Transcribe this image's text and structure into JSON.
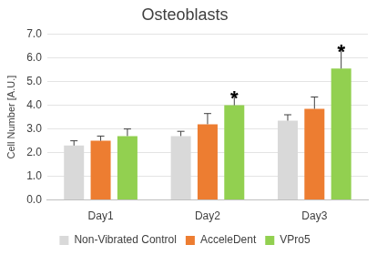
{
  "chart_data": {
    "type": "bar",
    "title": "Osteoblasts",
    "y_label": "Cell Number [A.U.]",
    "categories": [
      "Day1",
      "Day2",
      "Day3"
    ],
    "series": [
      {
        "name": "Non-Vibrated Control",
        "color": "#d9d9d9",
        "values": [
          2.3,
          2.7,
          3.35
        ],
        "errors": [
          0.2,
          0.2,
          0.25
        ]
      },
      {
        "name": "AcceleDent",
        "color": "#ed7d31",
        "values": [
          2.5,
          3.2,
          3.85
        ],
        "errors": [
          0.2,
          0.45,
          0.5
        ]
      },
      {
        "name": "VPro5",
        "color": "#92d050",
        "values": [
          2.7,
          4.0,
          5.55
        ],
        "errors": [
          0.3,
          0.45,
          0.85
        ]
      }
    ],
    "annotations": [
      {
        "text": "*",
        "category": "Day2",
        "series": "VPro5"
      },
      {
        "text": "*",
        "category": "Day3",
        "series": "VPro5"
      }
    ],
    "ylim": [
      0,
      7
    ],
    "yticks": [
      {
        "value": 0,
        "label": "0.0"
      },
      {
        "value": 1,
        "label": "1.0"
      },
      {
        "value": 2,
        "label": "2.0"
      },
      {
        "value": 3,
        "label": "3.0"
      },
      {
        "value": 4,
        "label": "4.0"
      },
      {
        "value": 5,
        "label": "5.0"
      },
      {
        "value": 6,
        "label": "6.0"
      },
      {
        "value": 7,
        "label": "7.0"
      }
    ],
    "grid": true,
    "legend": "bottom"
  }
}
